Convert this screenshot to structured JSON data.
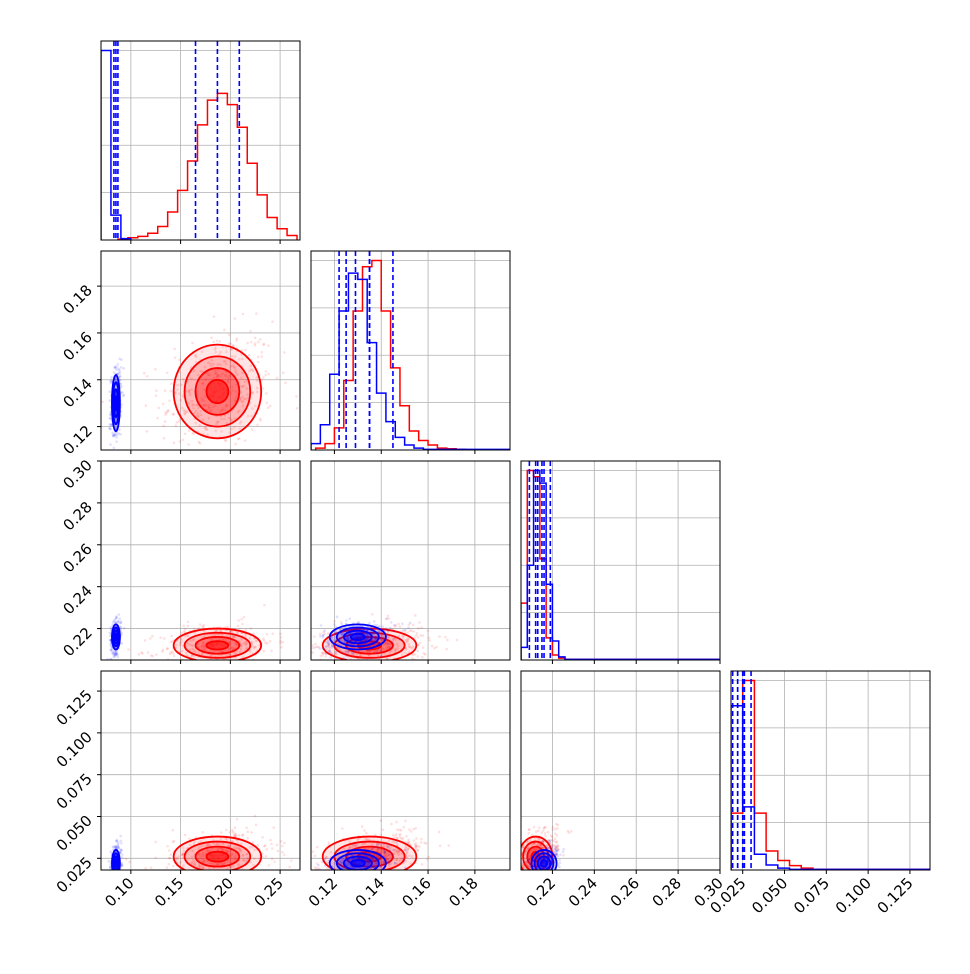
{
  "colors": {
    "red": "#ff0000",
    "blue": "#0000ff",
    "grid": "#b0b0b0",
    "frame": "#000000"
  },
  "chart_data": {
    "type": "corner",
    "grid": true,
    "params": [
      {
        "range": [
          0.07,
          0.27
        ],
        "ticks": [
          "0.10",
          "0.15",
          "0.20",
          "0.25"
        ],
        "tickvals": [
          0.1,
          0.15,
          0.2,
          0.25
        ]
      },
      {
        "range": [
          0.11,
          0.195
        ],
        "ticks": [
          "0.12",
          "0.14",
          "0.16",
          "0.18"
        ],
        "tickvals": [
          0.12,
          0.14,
          0.16,
          0.18
        ]
      },
      {
        "range": [
          0.205,
          0.3
        ],
        "ticks": [
          "0.22",
          "0.24",
          "0.26",
          "0.28",
          "0.30"
        ],
        "tickvals": [
          0.22,
          0.24,
          0.26,
          0.28,
          0.3
        ]
      },
      {
        "range": [
          0.018,
          0.137
        ],
        "ticks": [
          "0.025",
          "0.050",
          "0.075",
          "0.100",
          "0.125"
        ],
        "tickvals": [
          0.025,
          0.05,
          0.075,
          0.1,
          0.125
        ]
      }
    ],
    "series": [
      {
        "color": "red",
        "center": [
          0.187,
          0.135,
          0.212,
          0.026
        ],
        "sigma": [
          0.022,
          0.01,
          0.004,
          0.006
        ],
        "quantiles": [
          [
            0.165,
            0.187,
            0.209
          ],
          [
            0.125,
            0.135,
            0.145
          ],
          [
            0.209,
            0.212,
            0.215
          ],
          [
            0.022,
            0.026,
            0.03
          ]
        ],
        "hist": [
          {
            "edges": [
              0.087,
              0.097,
              0.107,
              0.117,
              0.127,
              0.137,
              0.147,
              0.157,
              0.167,
              0.177,
              0.187,
              0.197,
              0.207,
              0.217,
              0.227,
              0.237,
              0.247,
              0.257,
              0.267
            ],
            "counts": [
              2,
              5,
              8,
              15,
              30,
              62,
              110,
              175,
              255,
              310,
              325,
              300,
              250,
              170,
              100,
              50,
              25,
              10
            ]
          },
          {
            "edges": [
              0.112,
              0.116,
              0.12,
              0.124,
              0.128,
              0.132,
              0.136,
              0.14,
              0.144,
              0.148,
              0.152,
              0.156,
              0.16,
              0.164,
              0.168,
              0.172,
              0.176,
              0.195
            ],
            "counts": [
              3,
              10,
              35,
              110,
              220,
              290,
              300,
              220,
              130,
              70,
              30,
              15,
              8,
              3,
              2,
              1,
              0
            ]
          },
          {
            "edges": [
              0.205,
              0.208,
              0.211,
              0.214,
              0.217,
              0.22,
              0.223,
              0.226,
              0.3
            ],
            "counts": [
              90,
              300,
              290,
              160,
              35,
              8,
              3,
              1
            ]
          },
          {
            "edges": [
              0.018,
              0.025,
              0.032,
              0.039,
              0.046,
              0.053,
              0.06,
              0.067,
              0.137
            ],
            "counts": [
              90,
              300,
              90,
              30,
              15,
              7,
              3,
              1
            ]
          }
        ]
      },
      {
        "color": "blue",
        "center": [
          0.085,
          0.13,
          0.216,
          0.022
        ],
        "sigma": [
          0.002,
          0.006,
          0.003,
          0.004
        ],
        "quantiles": [
          [
            0.083,
            0.085,
            0.087
          ],
          [
            0.122,
            0.129,
            0.135
          ],
          [
            0.213,
            0.216,
            0.219
          ],
          [
            0.019,
            0.022,
            0.025
          ]
        ],
        "hist": [
          {
            "edges": [
              0.07,
              0.08,
              0.09,
              0.1
            ],
            "counts": [
              420,
              55,
              3
            ]
          },
          {
            "edges": [
              0.11,
              0.114,
              0.118,
              0.122,
              0.126,
              0.13,
              0.134,
              0.138,
              0.142,
              0.146,
              0.15,
              0.154,
              0.158,
              0.195
            ],
            "counts": [
              10,
              40,
              120,
              220,
              280,
              270,
              170,
              90,
              45,
              20,
              8,
              3,
              1
            ]
          },
          {
            "edges": [
              0.205,
              0.208,
              0.211,
              0.214,
              0.217,
              0.22,
              0.223,
              0.226,
              0.3
            ],
            "counts": [
              20,
              150,
              300,
              280,
              120,
              30,
              5,
              1
            ]
          },
          {
            "edges": [
              0.018,
              0.025,
              0.032,
              0.039,
              0.046,
              0.053,
              0.137
            ],
            "counts": [
              260,
              100,
              25,
              8,
              3,
              1
            ]
          }
        ]
      }
    ]
  }
}
